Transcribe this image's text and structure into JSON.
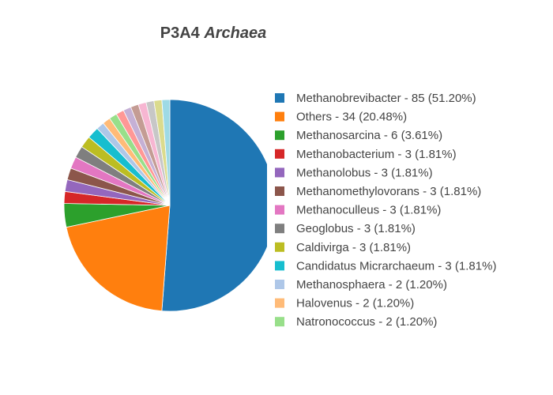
{
  "chart_data": {
    "type": "pie",
    "title": {
      "text": "P3A4",
      "italic": "Archaea"
    },
    "categories": [
      "Methanobrevibacter - 85 (51.20%)",
      "Others - 34 (20.48%)",
      "Methanosarcina - 6 (3.61%)",
      "Methanobacterium - 3 (1.81%)",
      "Methanolobus - 3 (1.81%)",
      "Methanomethylovorans - 3 (1.81%)",
      "Methanoculleus - 3 (1.81%)",
      "Geoglobus - 3 (1.81%)",
      "Caldivirga - 3 (1.81%)",
      "Candidatus Micrarchaeum - 3 (1.81%)",
      "Methanosphaera - 2 (1.20%)",
      "Halovenus - 2 (1.20%)",
      "Natronococcus - 2 (1.20%)",
      null,
      null,
      null,
      null,
      null,
      null,
      null
    ],
    "values": [
      85,
      34,
      6,
      3,
      3,
      3,
      3,
      3,
      3,
      3,
      2,
      2,
      2,
      2,
      2,
      2,
      2,
      2,
      2,
      2
    ],
    "colors": [
      "#1f77b4",
      "#ff7f0e",
      "#2ca02c",
      "#d62728",
      "#9467bd",
      "#8c564b",
      "#e377c2",
      "#7f7f7f",
      "#bcbd22",
      "#17becf",
      "#aec7e8",
      "#ffbb78",
      "#98df8a",
      "#ff9896",
      "#c5b0d5",
      "#c49c94",
      "#f7b6d2",
      "#c7c7c7",
      "#dbdb8d",
      "#9edae5"
    ],
    "legend": "right"
  }
}
